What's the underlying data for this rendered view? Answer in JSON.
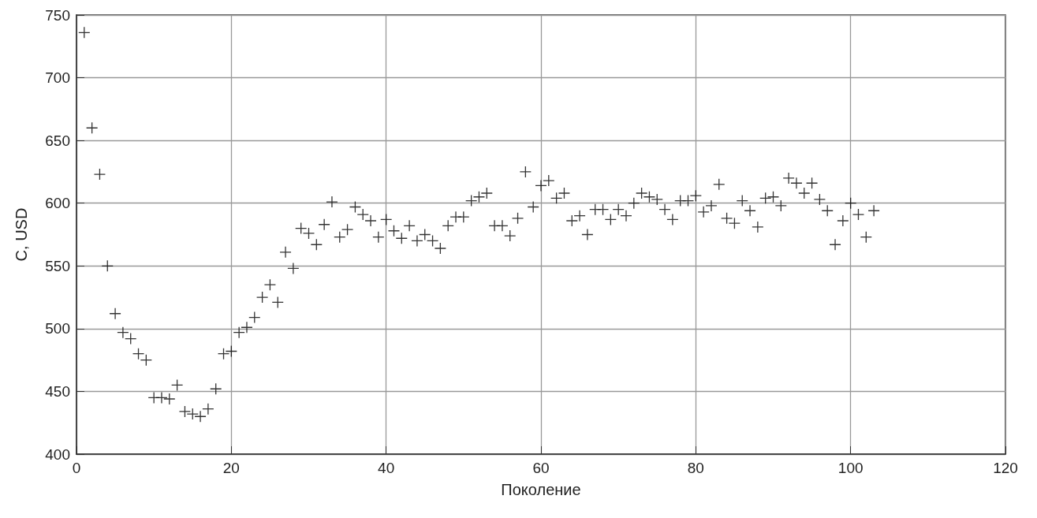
{
  "chart_data": {
    "type": "scatter",
    "xlabel": "Поколение",
    "ylabel": "C, USD",
    "x": [
      1,
      2,
      3,
      4,
      5,
      6,
      7,
      8,
      9,
      10,
      11,
      12,
      13,
      14,
      15,
      16,
      17,
      18,
      19,
      20,
      21,
      22,
      23,
      24,
      25,
      26,
      27,
      28,
      29,
      30,
      31,
      32,
      33,
      34,
      35,
      36,
      37,
      38,
      39,
      40,
      41,
      42,
      43,
      44,
      45,
      46,
      47,
      48,
      49,
      50,
      51,
      52,
      53,
      54,
      55,
      56,
      57,
      58,
      59,
      60,
      61,
      62,
      63,
      64,
      65,
      66,
      67,
      68,
      69,
      70,
      71,
      72,
      73,
      74,
      75,
      76,
      77,
      78,
      79,
      80,
      81,
      82,
      83,
      84,
      85,
      86,
      87,
      88,
      89,
      90,
      91,
      92,
      93,
      94,
      95,
      96,
      97,
      98,
      99,
      100,
      101,
      102,
      103
    ],
    "values": [
      736,
      660,
      623,
      550,
      512,
      497,
      492,
      480,
      475,
      445,
      445,
      444,
      455,
      434,
      432,
      430,
      436,
      452,
      480,
      482,
      497,
      501,
      509,
      525,
      535,
      521,
      561,
      548,
      580,
      576,
      567,
      583,
      601,
      573,
      579,
      597,
      591,
      586,
      573,
      587,
      578,
      572,
      582,
      570,
      575,
      570,
      564,
      582,
      589,
      589,
      602,
      605,
      608,
      582,
      582,
      574,
      588,
      625,
      597,
      614,
      618,
      604,
      608,
      586,
      590,
      575,
      595,
      595,
      587,
      595,
      590,
      600,
      608,
      605,
      603,
      595,
      587,
      602,
      602,
      606,
      593,
      598,
      615,
      588,
      584,
      602,
      594,
      581,
      604,
      605,
      598,
      620,
      616,
      608,
      616,
      603,
      594,
      567,
      586,
      600,
      591,
      573,
      594
    ],
    "color": "#000000",
    "marker": "cross",
    "grid": true,
    "xlim": [
      0,
      120
    ],
    "xticks": [
      0,
      20,
      40,
      60,
      80,
      100,
      120
    ],
    "ylim": [
      400,
      750
    ],
    "yticks": [
      400,
      450,
      500,
      550,
      600,
      650,
      700,
      750
    ]
  }
}
